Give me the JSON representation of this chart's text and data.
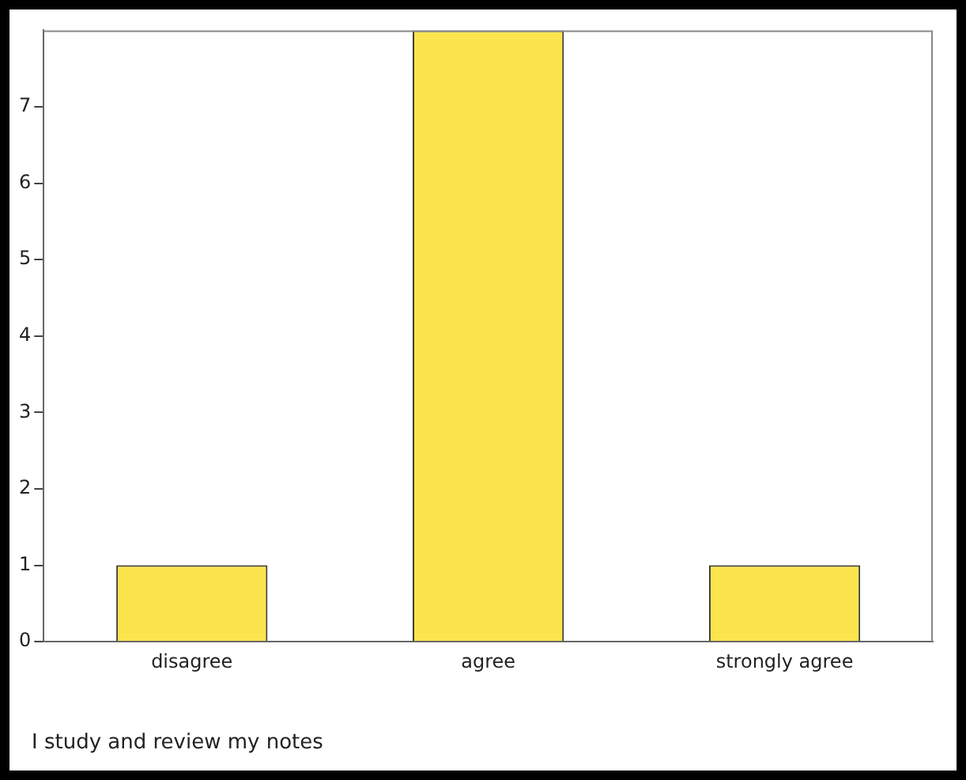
{
  "chart_data": {
    "type": "bar",
    "categories": [
      "disagree",
      "agree",
      "strongly agree"
    ],
    "values": [
      1,
      8,
      1
    ],
    "color": "#fce44f",
    "ylim": [
      0,
      8
    ],
    "yticks": [
      0,
      1,
      2,
      3,
      4,
      5,
      6,
      7
    ],
    "grid": false,
    "legend": false,
    "annotations": [
      "I study and review my notes"
    ]
  }
}
